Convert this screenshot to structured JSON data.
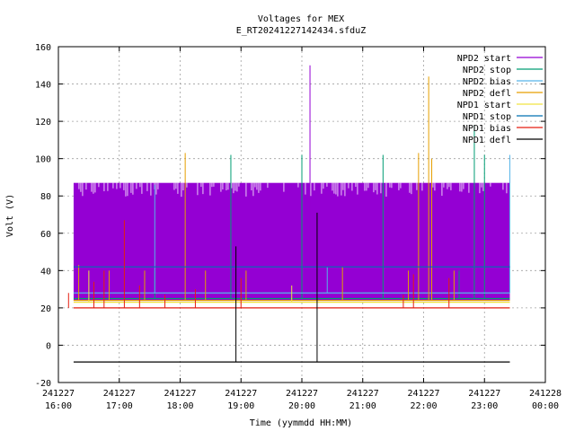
{
  "chart_data": {
    "type": "line",
    "title": "Voltages for MEX",
    "subtitle": "E_RT20241227142434.sfduZ",
    "xlabel": "Time (yymmdd HH:MM)",
    "ylabel": "Volt (V)",
    "xlim": [
      "2024-12-27 16:00",
      "2024-12-28 00:00"
    ],
    "ylim": [
      -20,
      160
    ],
    "grid": true,
    "legend_position": "top-right",
    "x_ticks": [
      {
        "date": "241227",
        "time": "16:00"
      },
      {
        "date": "241227",
        "time": "17:00"
      },
      {
        "date": "241227",
        "time": "18:00"
      },
      {
        "date": "241227",
        "time": "19:00"
      },
      {
        "date": "241227",
        "time": "20:00"
      },
      {
        "date": "241227",
        "time": "21:00"
      },
      {
        "date": "241227",
        "time": "22:00"
      },
      {
        "date": "241227",
        "time": "23:00"
      },
      {
        "date": "241228",
        "time": "00:00"
      }
    ],
    "y_ticks": [
      -20,
      0,
      20,
      40,
      60,
      80,
      100,
      120,
      140,
      160
    ],
    "series": [
      {
        "name": "NPD2 start",
        "color": "#9400d3",
        "baseline": 24,
        "band": {
          "low": 24,
          "high": 87,
          "x_start": "2024-12-27 16:15",
          "x_end": "2024-12-27 23:25"
        },
        "spikes": [
          {
            "x": "2024-12-27 20:08",
            "y": 150
          },
          {
            "x": "2024-12-27 19:35",
            "y": 26
          },
          {
            "x": "2024-12-27 22:00",
            "y": 26
          }
        ]
      },
      {
        "name": "NPD2 stop",
        "color": "#009e73",
        "baseline": 25,
        "spikes": [
          {
            "x": "2024-12-27 18:50",
            "y": 102
          },
          {
            "x": "2024-12-27 20:00",
            "y": 102
          },
          {
            "x": "2024-12-27 21:20",
            "y": 102
          },
          {
            "x": "2024-12-27 22:50",
            "y": 118
          },
          {
            "x": "2024-12-27 23:00",
            "y": 102
          },
          {
            "x": "2024-12-27 17:35",
            "y": 40
          },
          {
            "x": "2024-12-27 22:35",
            "y": 40
          }
        ]
      },
      {
        "name": "NPD2 bias",
        "color": "#56b4e9",
        "baseline": 28,
        "spikes": [
          {
            "x": "2024-12-27 23:25",
            "y": 102
          },
          {
            "x": "2024-12-27 17:35",
            "y": 86
          },
          {
            "x": "2024-12-27 20:25",
            "y": 42
          }
        ]
      },
      {
        "name": "NPD2 defl",
        "color": "#e69f00",
        "baseline": 24,
        "spikes": [
          {
            "x": "2024-12-27 18:05",
            "y": 103
          },
          {
            "x": "2024-12-27 21:55",
            "y": 103
          },
          {
            "x": "2024-12-27 22:05",
            "y": 144
          },
          {
            "x": "2024-12-27 22:08",
            "y": 100
          },
          {
            "x": "2024-12-27 16:20",
            "y": 43
          },
          {
            "x": "2024-12-27 16:50",
            "y": 40
          },
          {
            "x": "2024-12-27 17:25",
            "y": 40
          },
          {
            "x": "2024-12-27 18:25",
            "y": 40
          },
          {
            "x": "2024-12-27 19:05",
            "y": 40
          },
          {
            "x": "2024-12-27 20:40",
            "y": 42
          },
          {
            "x": "2024-12-27 21:45",
            "y": 40
          },
          {
            "x": "2024-12-27 22:30",
            "y": 40
          }
        ]
      },
      {
        "name": "NPD1 start",
        "color": "#f0e442",
        "baseline": 23,
        "spikes": [
          {
            "x": "2024-12-27 16:30",
            "y": 40
          },
          {
            "x": "2024-12-27 19:50",
            "y": 32
          }
        ]
      },
      {
        "name": "NPD1 stop",
        "color": "#0072b2",
        "baseline": 42,
        "spikes": []
      },
      {
        "name": "NPD1 bias",
        "color": "#e51e10",
        "baseline": 20,
        "spikes": [
          {
            "x": "2024-12-27 16:10",
            "y": 28
          },
          {
            "x": "2024-12-27 16:35",
            "y": 34
          },
          {
            "x": "2024-12-27 16:45",
            "y": 40
          },
          {
            "x": "2024-12-27 17:05",
            "y": 67
          },
          {
            "x": "2024-12-27 17:20",
            "y": 32
          },
          {
            "x": "2024-12-27 17:45",
            "y": 27
          },
          {
            "x": "2024-12-27 18:15",
            "y": 30
          },
          {
            "x": "2024-12-27 19:00",
            "y": 36
          },
          {
            "x": "2024-12-27 21:40",
            "y": 27
          },
          {
            "x": "2024-12-27 21:50",
            "y": 38
          },
          {
            "x": "2024-12-27 22:25",
            "y": 36
          }
        ]
      },
      {
        "name": "NPD1 defl",
        "color": "#000000",
        "baseline": -9,
        "spikes": [
          {
            "x": "2024-12-27 18:55",
            "y": 53
          },
          {
            "x": "2024-12-27 20:15",
            "y": 71
          }
        ]
      }
    ]
  }
}
